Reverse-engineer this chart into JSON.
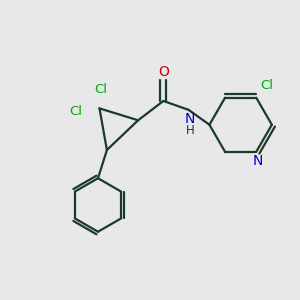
{
  "bg_color": "#e8e8eb",
  "bond_color": "#1a3a2a",
  "o_color": "#cc0000",
  "n_color": "#0000cc",
  "cl_color": "#00aa00",
  "lw": 1.6,
  "figsize": [
    3.0,
    3.0
  ],
  "dpi": 100,
  "xlim": [
    0,
    10
  ],
  "ylim": [
    0,
    10
  ]
}
